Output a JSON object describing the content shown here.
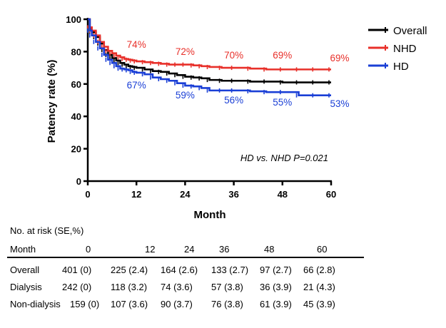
{
  "chart_data": {
    "type": "line",
    "ylabel": "Patency rate (%)",
    "xlabel": "Month",
    "xlim": [
      0,
      60
    ],
    "ylim": [
      0,
      100
    ],
    "xticks": [
      "0",
      "12",
      "24",
      "36",
      "48",
      "60"
    ],
    "yticks": [
      "0",
      "20",
      "40",
      "60",
      "80",
      "100"
    ],
    "legend_position": "top-right",
    "p_value_text": "HD vs. NHD P=0.021",
    "series": [
      {
        "name": "Overall",
        "color": "#000000",
        "x": [
          0,
          0.5,
          1,
          2,
          3,
          4,
          5,
          6,
          7,
          8,
          9,
          10,
          11,
          12,
          14,
          16,
          18,
          20,
          22,
          24,
          26,
          28,
          30,
          33,
          36,
          40,
          44,
          48,
          52,
          56,
          60
        ],
        "y": [
          100,
          94,
          92,
          89,
          85,
          81,
          78,
          76,
          74.5,
          73,
          72,
          71,
          70.5,
          70,
          69,
          68,
          67.5,
          66.5,
          65.5,
          64.5,
          64,
          63.5,
          62.5,
          62,
          62,
          61.5,
          61.5,
          61,
          61,
          61,
          61
        ]
      },
      {
        "name": "NHD",
        "color": "#e8302a",
        "x": [
          0,
          0.5,
          1,
          2,
          3,
          4,
          5,
          6,
          7,
          8,
          9,
          10,
          11,
          12,
          14,
          16,
          18,
          20,
          22,
          24,
          26,
          28,
          30,
          33,
          36,
          40,
          44,
          48,
          52,
          56,
          60
        ],
        "y": [
          100,
          95,
          93,
          90,
          86,
          83,
          80.5,
          79,
          77.5,
          76.5,
          75.5,
          75,
          74.5,
          74,
          73.5,
          73,
          72.5,
          72,
          72,
          72,
          71.5,
          71,
          70.5,
          70,
          70,
          69.5,
          69,
          69,
          69,
          69,
          69
        ]
      },
      {
        "name": "HD",
        "color": "#1a3fd6",
        "x": [
          0,
          0.5,
          1,
          2,
          3,
          4,
          5,
          6,
          7,
          8,
          9,
          10,
          11,
          12,
          14,
          16,
          18,
          20,
          22,
          24,
          26,
          28,
          30,
          33,
          36,
          40,
          44,
          48,
          52,
          56,
          60
        ],
        "y": [
          100,
          93,
          90,
          86,
          82,
          78,
          75,
          73,
          71,
          69.5,
          69,
          68.5,
          67.5,
          67,
          66,
          64,
          63,
          62,
          60.5,
          59,
          58.5,
          57.5,
          56,
          56,
          56,
          55.5,
          55,
          55,
          53,
          53,
          53
        ]
      }
    ],
    "annotations": [
      {
        "series": "NHD",
        "x": 12,
        "text": "74%"
      },
      {
        "series": "NHD",
        "x": 24,
        "text": "72%"
      },
      {
        "series": "NHD",
        "x": 36,
        "text": "70%"
      },
      {
        "series": "NHD",
        "x": 48,
        "text": "69%"
      },
      {
        "series": "NHD",
        "x": 60,
        "text": "69%"
      },
      {
        "series": "HD",
        "x": 12,
        "text": "67%"
      },
      {
        "series": "HD",
        "x": 24,
        "text": "59%"
      },
      {
        "series": "HD",
        "x": 36,
        "text": "56%"
      },
      {
        "series": "HD",
        "x": 48,
        "text": "55%"
      },
      {
        "series": "HD",
        "x": 60,
        "text": "53%"
      }
    ]
  },
  "risk_table": {
    "header": "No. at risk (SE,%)",
    "month_label": "Month",
    "months": [
      "0",
      "12",
      "24",
      "36",
      "48",
      "60"
    ],
    "rows": [
      {
        "label": "Overall",
        "cells": [
          "401 (0)",
          "225 (2.4)",
          "164 (2.6)",
          "133 (2.7)",
          "97 (2.7)",
          "66 (2.8)"
        ]
      },
      {
        "label": "Dialysis",
        "cells": [
          "242 (0)",
          "118 (3.2)",
          "74 (3.6)",
          "57 (3.8)",
          "36 (3.9)",
          "21 (4.3)"
        ]
      },
      {
        "label": "Non-dialysis",
        "cells": [
          "159 (0)",
          "107 (3.6)",
          "90 (3.7)",
          "76 (3.8)",
          "61 (3.9)",
          "45 (3.9)"
        ]
      }
    ]
  }
}
